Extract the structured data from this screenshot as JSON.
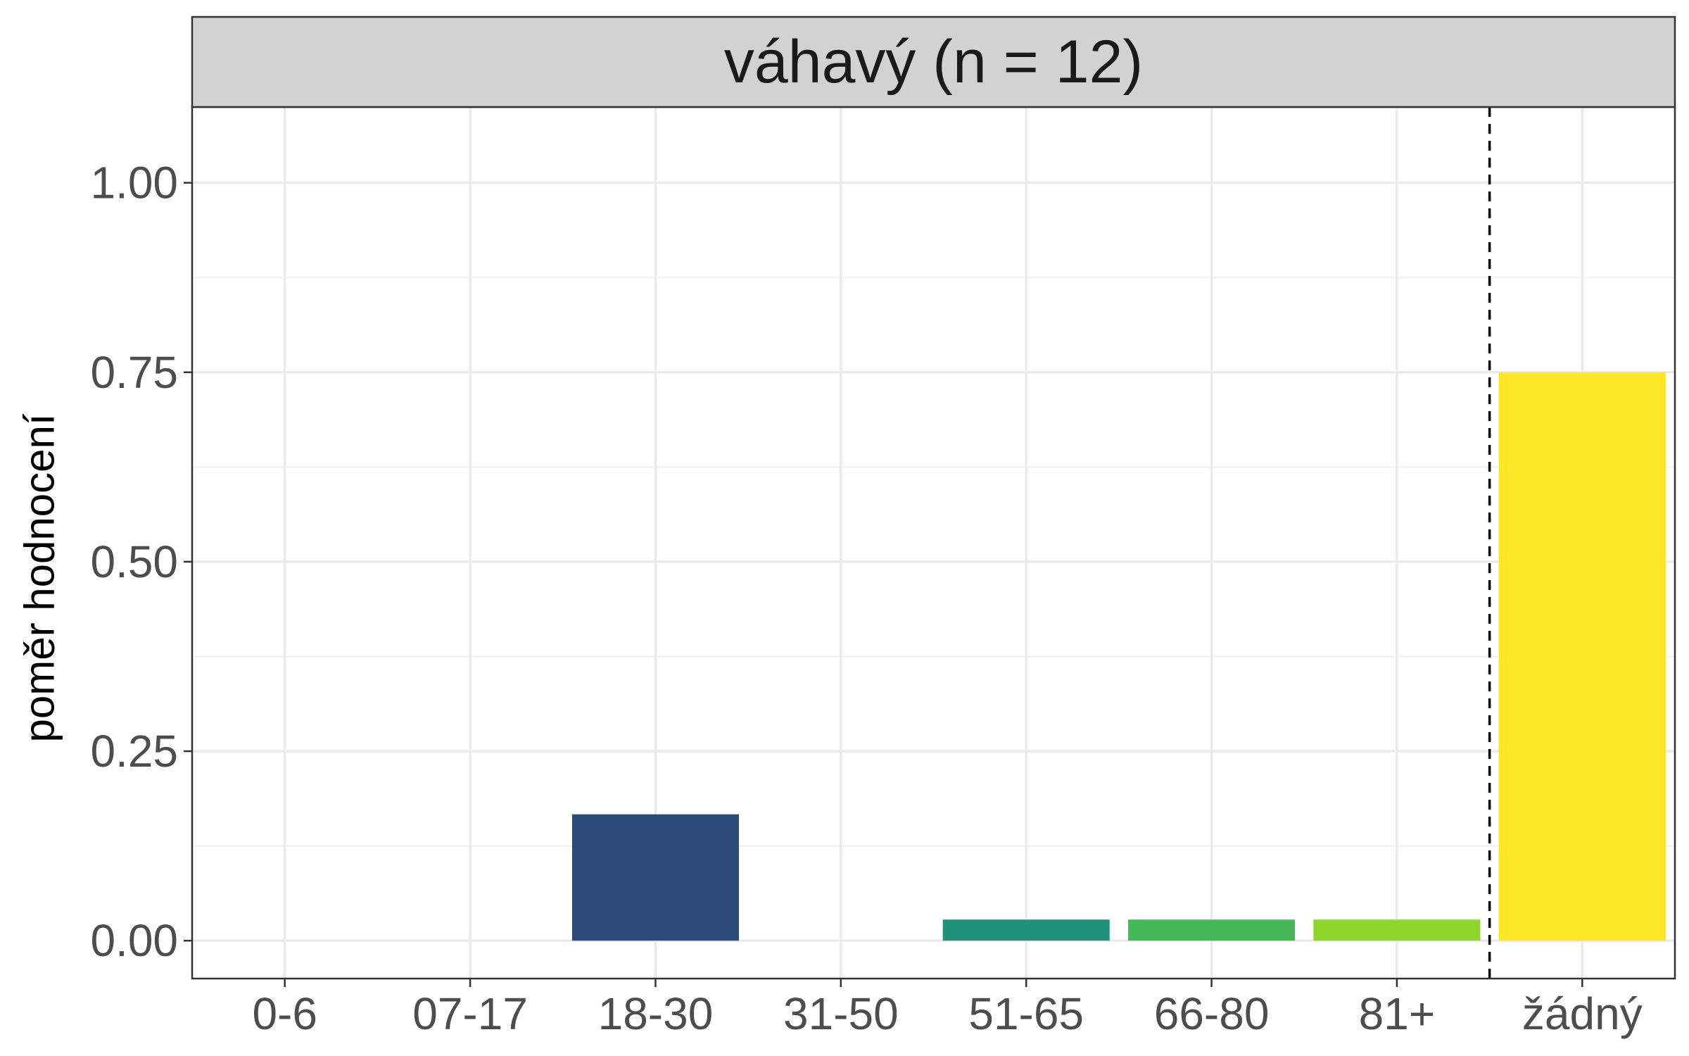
{
  "chart_data": {
    "type": "bar",
    "title": "váhavý (n = 12)",
    "xlabel": "",
    "ylabel": "poměr hodnocení",
    "categories": [
      "0-6",
      "07-17",
      "18-30",
      "31-50",
      "51-65",
      "66-80",
      "81+",
      "žádný"
    ],
    "values": [
      0,
      0,
      0.1667,
      0,
      0.0278,
      0.0278,
      0.0278,
      0.75
    ],
    "colors": [
      "#440154",
      "#46327e",
      "#2a4a7a",
      "#277f8e",
      "#21917a",
      "#44b956",
      "#8ed62c",
      "#fde725"
    ],
    "ylim": [
      -0.05,
      1.1
    ],
    "yticks": [
      0,
      0.25,
      0.5,
      0.75,
      1.0
    ],
    "ytick_labels": [
      "0.00",
      "0.25",
      "0.50",
      "0.75",
      "1.00"
    ],
    "reference_line": {
      "style": "dashed",
      "between": [
        "81+",
        "žádný"
      ]
    },
    "grid": true,
    "legend": "none",
    "strip_color": "#d2d2d2"
  }
}
